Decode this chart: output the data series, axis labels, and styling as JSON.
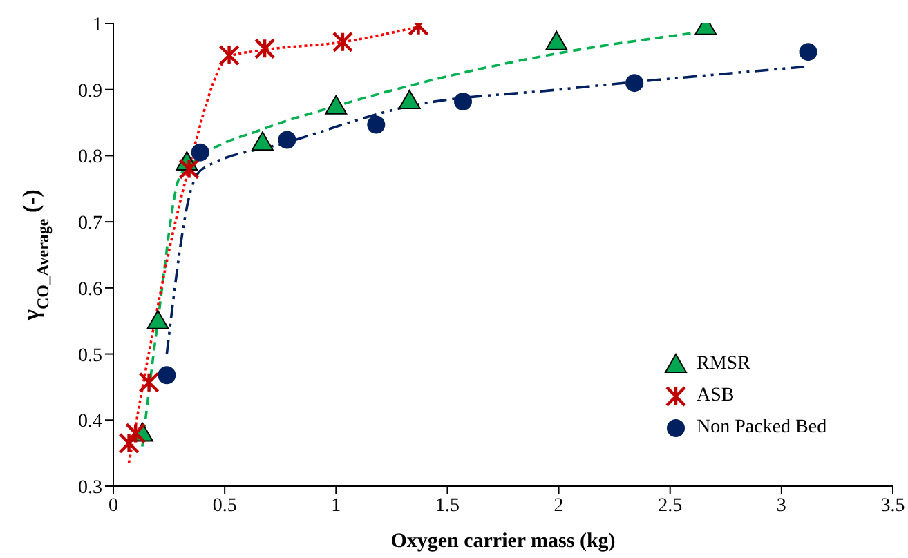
{
  "chart_data": {
    "type": "scatter",
    "xlabel": "Oxygen carrier mass (kg)",
    "ylabel": "γ$_{CO_Average}$ (-)",
    "xlim": [
      0,
      3.5
    ],
    "xticks": [
      0,
      0.5,
      1,
      1.5,
      2,
      2.5,
      3,
      3.5
    ],
    "ylim": [
      0.3,
      1
    ],
    "yticks": [
      0.3,
      0.4,
      0.5,
      0.6,
      0.7,
      0.8,
      0.9,
      1
    ],
    "grid": false,
    "legend": "bottom right",
    "series": [
      {
        "name": "RMSR",
        "marker": "triangle",
        "color": "#00a650",
        "x": [
          0.13,
          0.2,
          0.33,
          0.67,
          1.0,
          1.33,
          1.99,
          2.66
        ],
        "values": [
          0.38,
          0.55,
          0.79,
          0.82,
          0.875,
          0.883,
          0.972,
          0.995
        ]
      },
      {
        "name": "ASB",
        "marker": "cross",
        "color": "#c00000",
        "x": [
          0.07,
          0.1,
          0.16,
          0.34,
          0.52,
          0.68,
          1.03,
          1.37
        ],
        "values": [
          0.365,
          0.38,
          0.457,
          0.78,
          0.952,
          0.962,
          0.972,
          0.997
        ]
      },
      {
        "name": "Non Packed Bed",
        "marker": "circle",
        "color": "#002060",
        "x": [
          0.24,
          0.39,
          0.78,
          1.18,
          1.57,
          2.34,
          3.12
        ],
        "values": [
          0.468,
          0.805,
          0.824,
          0.847,
          0.882,
          0.91,
          0.957
        ]
      },
      {
        "type": "line",
        "line_style": "dashed",
        "color": "#00b050",
        "x": [
          0.13,
          0.2,
          0.3,
          0.4,
          0.67,
          1.0,
          1.5,
          2.0,
          2.66
        ],
        "values": [
          0.36,
          0.55,
          0.77,
          0.8,
          0.84,
          0.875,
          0.92,
          0.955,
          0.988
        ]
      },
      {
        "type": "line",
        "line_style": "dotted",
        "color": "#ff0000",
        "x": [
          0.07,
          0.33,
          0.52,
          0.68,
          1.03,
          1.37
        ],
        "values": [
          0.335,
          0.77,
          0.95,
          0.96,
          0.972,
          0.995
        ]
      },
      {
        "type": "line",
        "line_style": "dashdot",
        "color": "#002060",
        "x": [
          0.24,
          0.35,
          0.4,
          0.78,
          1.33,
          2.0,
          3.12
        ],
        "values": [
          0.5,
          0.75,
          0.78,
          0.82,
          0.875,
          0.9,
          0.935
        ]
      }
    ]
  }
}
